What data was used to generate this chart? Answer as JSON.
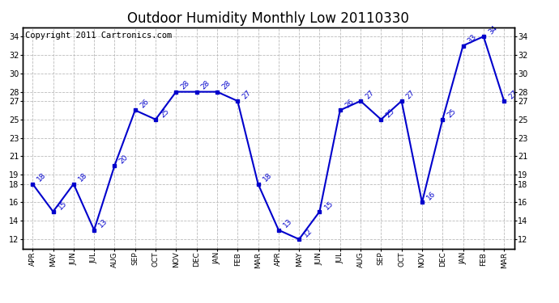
{
  "title": "Outdoor Humidity Monthly Low 20110330",
  "copyright": "Copyright 2011 Cartronics.com",
  "categories": [
    "APR",
    "MAY",
    "JUN",
    "JUL",
    "AUG",
    "SEP",
    "OCT",
    "NOV",
    "DEC",
    "JAN",
    "FEB",
    "MAR",
    "APR",
    "MAY",
    "JUN",
    "JUL",
    "AUG",
    "SEP",
    "OCT",
    "NOV",
    "DEC",
    "JAN",
    "FEB",
    "MAR"
  ],
  "values": [
    18,
    15,
    18,
    13,
    20,
    26,
    25,
    28,
    28,
    28,
    27,
    18,
    13,
    12,
    15,
    26,
    27,
    25,
    27,
    16,
    25,
    33,
    34,
    27
  ],
  "line_color": "#0000cc",
  "marker": "s",
  "marker_size": 3,
  "ylim": [
    11,
    35
  ],
  "yticks": [
    12,
    14,
    16,
    18,
    19,
    21,
    23,
    25,
    27,
    28,
    30,
    32,
    34
  ],
  "grid_color": "#bbbbbb",
  "background_color": "#ffffff",
  "title_fontsize": 12,
  "copyright_fontsize": 7.5
}
